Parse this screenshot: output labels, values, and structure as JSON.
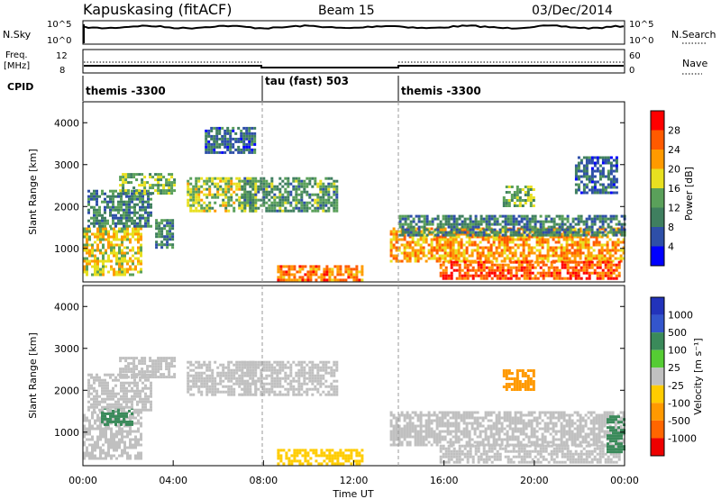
{
  "header": {
    "station": "Kapuskasing (fitACF)",
    "beam": "Beam 15",
    "date": "03/Dec/2014"
  },
  "top_panels": {
    "nsky_label": "N.Sky",
    "nsky_ticks": [
      "10^5",
      "10^0"
    ],
    "nsearch_label": "N.Search",
    "freq_label": "Freq.",
    "freq_unit": "[MHz]",
    "freq_ticks": [
      "12",
      "8"
    ],
    "nave_label": "Nave",
    "nave_ticks": [
      "60",
      "0"
    ],
    "cpid_label": "CPID",
    "cpid_segments": [
      {
        "label": "themis -3300",
        "start_h": 0,
        "end_h": 8
      },
      {
        "label": "tau (fast) 503",
        "start_h": 8,
        "end_h": 14
      },
      {
        "label": "themis -3300",
        "start_h": 14,
        "end_h": 24
      }
    ]
  },
  "colors": {
    "power": [
      "#0000ff",
      "#2e4fa8",
      "#3f7f5f",
      "#5aa05a",
      "#e8e020",
      "#ff9a00",
      "#ff5a00",
      "#ff0000"
    ],
    "velocity": [
      "#2233bb",
      "#3355cc",
      "#3a8a5a",
      "#55cc33",
      "#c0c0c0",
      "#ffcc00",
      "#ff9900",
      "#ff6600",
      "#ee0000"
    ]
  },
  "chart_data": [
    {
      "type": "heatmap",
      "panel": "power",
      "ylabel": "Slant Range [km]",
      "yticks": [
        1000,
        2000,
        3000,
        4000
      ],
      "ylim": [
        200,
        4500
      ],
      "xlim_hours": [
        0,
        24
      ],
      "colorbar": {
        "label": "Power [dB]",
        "ticks": [
          "4",
          "8",
          "12",
          "16",
          "20",
          "24",
          "28"
        ],
        "range": [
          0,
          30
        ]
      },
      "regions": [
        {
          "t0": 0,
          "t1": 2.6,
          "r0": 400,
          "r1": 1500,
          "value": 18
        },
        {
          "t0": 0.2,
          "t1": 3.0,
          "r0": 1500,
          "r1": 2400,
          "value": 10
        },
        {
          "t0": 1.6,
          "t1": 4.0,
          "r0": 2300,
          "r1": 2800,
          "value": 14
        },
        {
          "t0": 3.2,
          "t1": 4.0,
          "r0": 1000,
          "r1": 1700,
          "value": 10
        },
        {
          "t0": 4.6,
          "t1": 7.6,
          "r0": 1900,
          "r1": 2700,
          "value": 16
        },
        {
          "t0": 5.4,
          "t1": 7.6,
          "r0": 3300,
          "r1": 3900,
          "value": 8
        },
        {
          "t0": 7.0,
          "t1": 11.2,
          "r0": 1900,
          "r1": 2700,
          "value": 12
        },
        {
          "t0": 8.6,
          "t1": 12.4,
          "r0": 250,
          "r1": 600,
          "value": 24
        },
        {
          "t0": 13.6,
          "t1": 24.0,
          "r0": 700,
          "r1": 1500,
          "value": 22
        },
        {
          "t0": 14.0,
          "t1": 24.0,
          "r0": 1300,
          "r1": 1800,
          "value": 10
        },
        {
          "t0": 15.8,
          "t1": 23.8,
          "r0": 300,
          "r1": 700,
          "value": 26
        },
        {
          "t0": 18.6,
          "t1": 20.0,
          "r0": 2000,
          "r1": 2500,
          "value": 14
        },
        {
          "t0": 21.8,
          "t1": 23.6,
          "r0": 2300,
          "r1": 3200,
          "value": 8
        }
      ]
    },
    {
      "type": "heatmap",
      "panel": "velocity",
      "ylabel": "Slant Range [km]",
      "yticks": [
        1000,
        2000,
        3000,
        4000
      ],
      "ylim": [
        200,
        4500
      ],
      "xlim_hours": [
        0,
        24
      ],
      "xlabel": "Time UT",
      "xticks": [
        "00:00",
        "04:00",
        "08:00",
        "12:00",
        "16:00",
        "20:00",
        "00:00"
      ],
      "colorbar": {
        "label": "Velocity [m s⁻¹]",
        "ticks": [
          "1000",
          "500",
          "100",
          "25",
          "-25",
          "-100",
          "-500",
          "-1000"
        ]
      },
      "regions": [
        {
          "t0": 0,
          "t1": 2.6,
          "r0": 400,
          "r1": 1500,
          "value": 0
        },
        {
          "t0": 0.8,
          "t1": 2.2,
          "r0": 1200,
          "r1": 1600,
          "value": 150
        },
        {
          "t0": 0.2,
          "t1": 3.0,
          "r0": 1500,
          "r1": 2400,
          "value": 0
        },
        {
          "t0": 1.6,
          "t1": 4.0,
          "r0": 2300,
          "r1": 2800,
          "value": 0
        },
        {
          "t0": 4.6,
          "t1": 7.6,
          "r0": 1900,
          "r1": 2700,
          "value": 0
        },
        {
          "t0": 7.0,
          "t1": 11.2,
          "r0": 1900,
          "r1": 2700,
          "value": 0
        },
        {
          "t0": 8.6,
          "t1": 12.4,
          "r0": 250,
          "r1": 600,
          "value": -60
        },
        {
          "t0": 13.6,
          "t1": 24.0,
          "r0": 700,
          "r1": 1500,
          "value": 0
        },
        {
          "t0": 15.8,
          "t1": 23.8,
          "r0": 300,
          "r1": 700,
          "value": 0
        },
        {
          "t0": 18.6,
          "t1": 20.0,
          "r0": 2000,
          "r1": 2500,
          "value": -150
        },
        {
          "t0": 23.2,
          "t1": 24.0,
          "r0": 500,
          "r1": 1400,
          "value": 150
        }
      ]
    }
  ]
}
